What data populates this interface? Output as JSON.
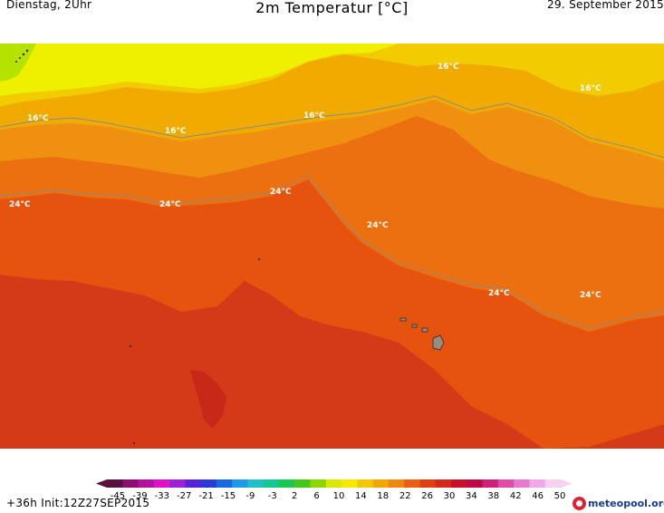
{
  "header": {
    "left": "Dienstag, 2Uhr",
    "title": "2m Temperatur [°C]",
    "right": "29. September 2015"
  },
  "map": {
    "isotherm_labels": [
      {
        "text": "16°C"
      },
      {
        "text": "16°C"
      },
      {
        "text": "16°C"
      },
      {
        "text": "16°C"
      },
      {
        "text": "16°C"
      },
      {
        "text": "24°C"
      },
      {
        "text": "24°C"
      },
      {
        "text": "24°C"
      },
      {
        "text": "24°C"
      },
      {
        "text": "24°C"
      },
      {
        "text": "24°C"
      },
      {
        "text": "24°C"
      }
    ],
    "colors": {
      "t12": "#b6e200",
      "t14": "#eef000",
      "t16": "#f2cb00",
      "t18": "#f0aa00",
      "t20": "#f09010",
      "t22": "#ec7010",
      "t24": "#e5530f",
      "t26": "#d43a17"
    }
  },
  "scale": {
    "ticks": [
      "-45",
      "-39",
      "-33",
      "-27",
      "-21",
      "-15",
      "-9",
      "-3",
      "2",
      "6",
      "10",
      "14",
      "18",
      "22",
      "26",
      "30",
      "34",
      "38",
      "42",
      "46",
      "50"
    ],
    "colors": [
      "#5a0f3e",
      "#8a0f70",
      "#b6109e",
      "#e010c8",
      "#a020d8",
      "#5a22d8",
      "#2a3ad8",
      "#1868e0",
      "#1a9ae8",
      "#20c0c8",
      "#10c890",
      "#18c850",
      "#44c818",
      "#8ad800",
      "#d8e800",
      "#f6e800",
      "#f2c800",
      "#f0a800",
      "#ec8810",
      "#e86010",
      "#e04010",
      "#d42818",
      "#c81028",
      "#c00848",
      "#d0207a",
      "#e04aa8",
      "#e878d0",
      "#f0a8e8",
      "#f8d0f4"
    ]
  },
  "run_info": "+36h  Init:12Z27SEP2015",
  "logo": {
    "text": "meteopool.org"
  }
}
